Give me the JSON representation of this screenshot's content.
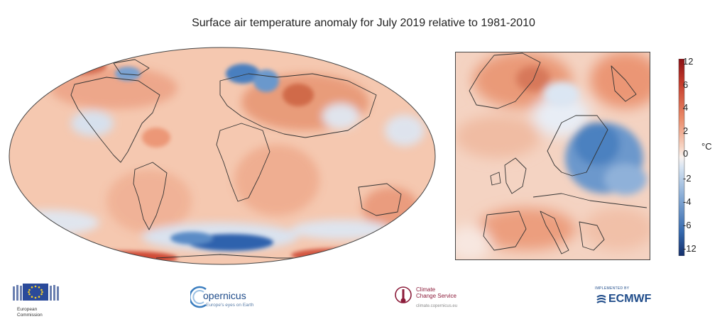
{
  "title": "Surface air temperature anomaly for July 2019 relative to 1981-2010",
  "colorbar": {
    "unit": "°C",
    "ticks": [
      "12",
      "6",
      "4",
      "2",
      "0",
      "-2",
      "-4",
      "-6",
      "-12"
    ],
    "colors": {
      "hot": "#b2221f",
      "warm": "#e8845e",
      "light": "#f7dccb",
      "neutral": "#fbf4f0",
      "cool": "#cddff0",
      "cold": "#4c86c2",
      "deep": "#1c4283"
    }
  },
  "logos": {
    "ec": {
      "line1": "European",
      "line2": "Commission"
    },
    "copernicus": {
      "name": "opernicus",
      "tagline": "Europe's eyes on Earth"
    },
    "c3s": {
      "line1": "Climate",
      "line2": "Change Service",
      "url": "climate.copernicus.eu"
    },
    "ecmwf": {
      "implemented": "IMPLEMENTED BY",
      "name": "ECMWF"
    }
  }
}
